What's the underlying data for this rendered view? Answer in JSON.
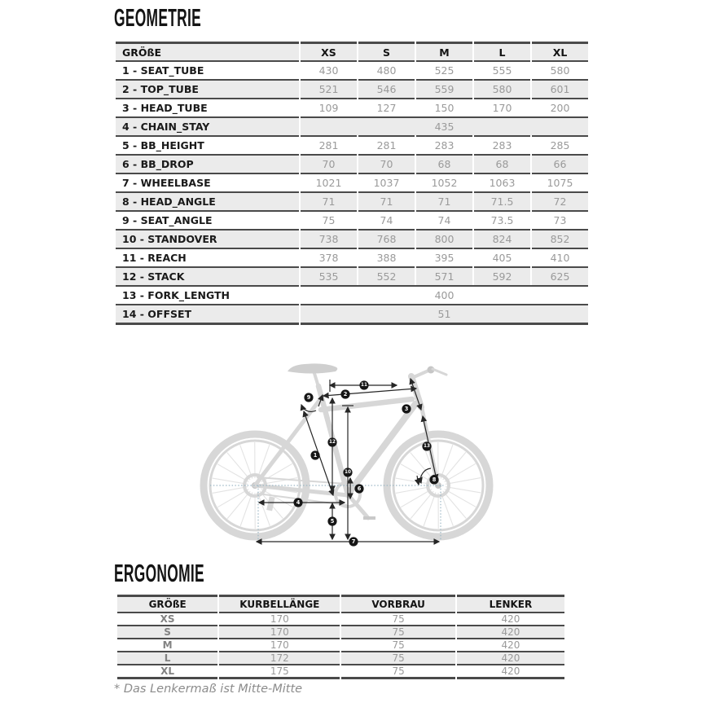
{
  "geometry_section": {
    "title": "GEOMETRIE",
    "table": {
      "size_header": "GRÖßE",
      "sizes": [
        "XS",
        "S",
        "M",
        "L",
        "XL"
      ],
      "rows": [
        {
          "label": "1 - SEAT_TUBE",
          "values": [
            "430",
            "480",
            "525",
            "555",
            "580"
          ]
        },
        {
          "label": "2 - TOP_TUBE",
          "values": [
            "521",
            "546",
            "559",
            "580",
            "601"
          ]
        },
        {
          "label": "3 - HEAD_TUBE",
          "values": [
            "109",
            "127",
            "150",
            "170",
            "200"
          ]
        },
        {
          "label": "4 - CHAIN_STAY",
          "merged": "435"
        },
        {
          "label": "5 - BB_HEIGHT",
          "values": [
            "281",
            "281",
            "283",
            "283",
            "285"
          ]
        },
        {
          "label": "6 - BB_DROP",
          "values": [
            "70",
            "70",
            "68",
            "68",
            "66"
          ]
        },
        {
          "label": "7 - WHEELBASE",
          "values": [
            "1021",
            "1037",
            "1052",
            "1063",
            "1075"
          ]
        },
        {
          "label": "8 - HEAD_ANGLE",
          "values": [
            "71",
            "71",
            "71",
            "71.5",
            "72"
          ]
        },
        {
          "label": "9 - SEAT_ANGLE",
          "values": [
            "75",
            "74",
            "74",
            "73.5",
            "73"
          ]
        },
        {
          "label": "10 - STANDOVER",
          "values": [
            "738",
            "768",
            "800",
            "824",
            "852"
          ]
        },
        {
          "label": "11 - REACH",
          "values": [
            "378",
            "388",
            "395",
            "405",
            "410"
          ]
        },
        {
          "label": "12 - STACK",
          "values": [
            "535",
            "552",
            "571",
            "592",
            "625"
          ]
        },
        {
          "label": "13 - FORK_LENGTH",
          "merged": "400"
        },
        {
          "label": "14 - OFFSET",
          "merged": "51"
        }
      ]
    }
  },
  "diagram": {
    "badges": [
      "1",
      "2",
      "3",
      "4",
      "5",
      "6",
      "7",
      "8",
      "9",
      "10",
      "11",
      "12",
      "13"
    ]
  },
  "ergonomics_section": {
    "title": "ERGONOMIE",
    "table": {
      "headers": [
        "GRÖßE",
        "KURBELLÄNGE",
        "VORBRAU",
        "LENKER"
      ],
      "rows": [
        {
          "size": "XS",
          "values": [
            "170",
            "75",
            "420"
          ]
        },
        {
          "size": "S",
          "values": [
            "170",
            "75",
            "420"
          ]
        },
        {
          "size": "M",
          "values": [
            "170",
            "75",
            "420"
          ]
        },
        {
          "size": "L",
          "values": [
            "172",
            "75",
            "420"
          ]
        },
        {
          "size": "XL",
          "values": [
            "175",
            "75",
            "420"
          ]
        }
      ]
    }
  },
  "footnote": "* Das Lenkermaß ist Mitte-Mitte"
}
